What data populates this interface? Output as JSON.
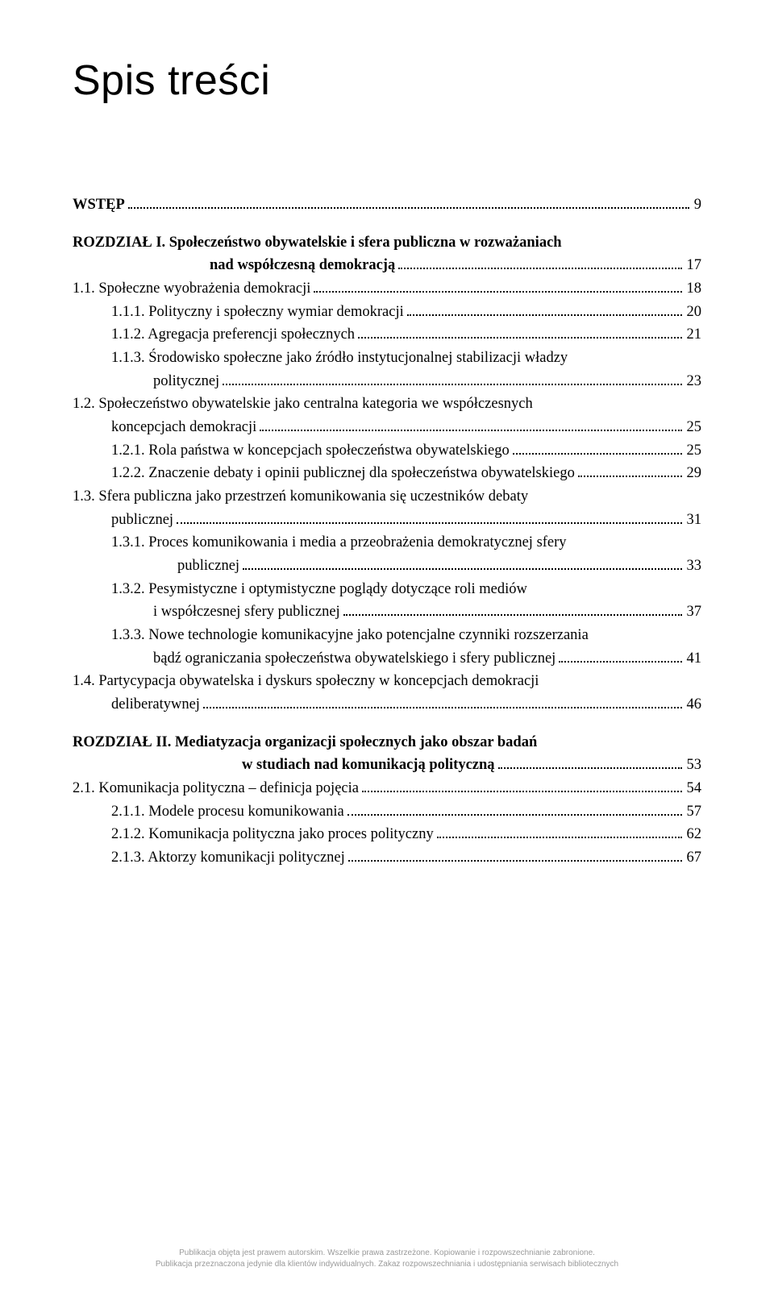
{
  "title": "Spis treści",
  "toc": {
    "wstep": {
      "label_bold": "WSTĘP",
      "page": "9"
    },
    "r1": {
      "label_bold": "ROZDZIAŁ I. ",
      "label_rest": "Społeczeństwo obywatelskie i sfera publiczna w rozważaniach",
      "cont_bold": "nad współczesną demokracją",
      "page": "17"
    },
    "e11": {
      "label": "1.1. Społeczne wyobrażenia demokracji",
      "page": "18"
    },
    "e111": {
      "label": "1.1.1. Polityczny i społeczny wymiar demokracji",
      "page": "20"
    },
    "e112": {
      "label": "1.1.2. Agregacja preferencji społecznych",
      "page": "21"
    },
    "e113": {
      "label": "1.1.3. Środowisko społeczne jako źródło instytucjonalnej stabilizacji władzy",
      "cont": "politycznej",
      "page": "23"
    },
    "e12": {
      "label": "1.2. Społeczeństwo obywatelskie jako centralna kategoria we współczesnych",
      "cont": "koncepcjach demokracji",
      "page": "25"
    },
    "e121": {
      "label": "1.2.1. Rola państwa w koncepcjach społeczeństwa obywatelskiego",
      "page": "25"
    },
    "e122": {
      "label": "1.2.2. Znaczenie debaty i opinii publicznej dla społeczeństwa obywatelskiego",
      "page": "29"
    },
    "e13": {
      "label": "1.3. Sfera publiczna jako przestrzeń komunikowania się uczestników debaty",
      "cont": "publicznej",
      "page": "31"
    },
    "e131": {
      "label": "1.3.1. Proces komunikowania i media a przeobrażenia demokratycznej sfery",
      "cont": "publicznej",
      "page": "33"
    },
    "e132": {
      "label": "1.3.2. Pesymistyczne i optymistyczne poglądy dotyczące roli mediów",
      "cont": "i współczesnej sfery publicznej",
      "page": "37"
    },
    "e133": {
      "label": "1.3.3. Nowe technologie komunikacyjne jako potencjalne czynniki rozszerzania",
      "cont": "bądź ograniczania społeczeństwa obywatelskiego i sfery publicznej",
      "page": "41"
    },
    "e14": {
      "label": "1.4. Partycypacja obywatelska i dyskurs społeczny w koncepcjach demokracji",
      "cont": "deliberatywnej",
      "page": "46"
    },
    "r2": {
      "label_bold": "ROZDZIAŁ II. ",
      "label_rest": "Mediatyzacja organizacji społecznych jako obszar badań",
      "cont_bold": "w studiach nad komunikacją polityczną",
      "page": "53"
    },
    "e21": {
      "label": "2.1. Komunikacja polityczna – definicja pojęcia",
      "page": "54"
    },
    "e211": {
      "label": "2.1.1. Modele procesu komunikowania",
      "page": "57"
    },
    "e212": {
      "label": "2.1.2. Komunikacja polityczna jako proces polityczny",
      "page": "62"
    },
    "e213": {
      "label": "2.1.3. Aktorzy komunikacji politycznej",
      "page": "67"
    }
  },
  "footer": {
    "line1": "Publikacja objęta jest prawem autorskim. Wszelkie prawa zastrzeżone. Kopiowanie i rozpowszechnianie zabronione.",
    "line2": "Publikacja przeznaczona jedynie dla klientów indywidualnych. Zakaz rozpowszechniania i udostępniania serwisach bibliotecznych"
  }
}
